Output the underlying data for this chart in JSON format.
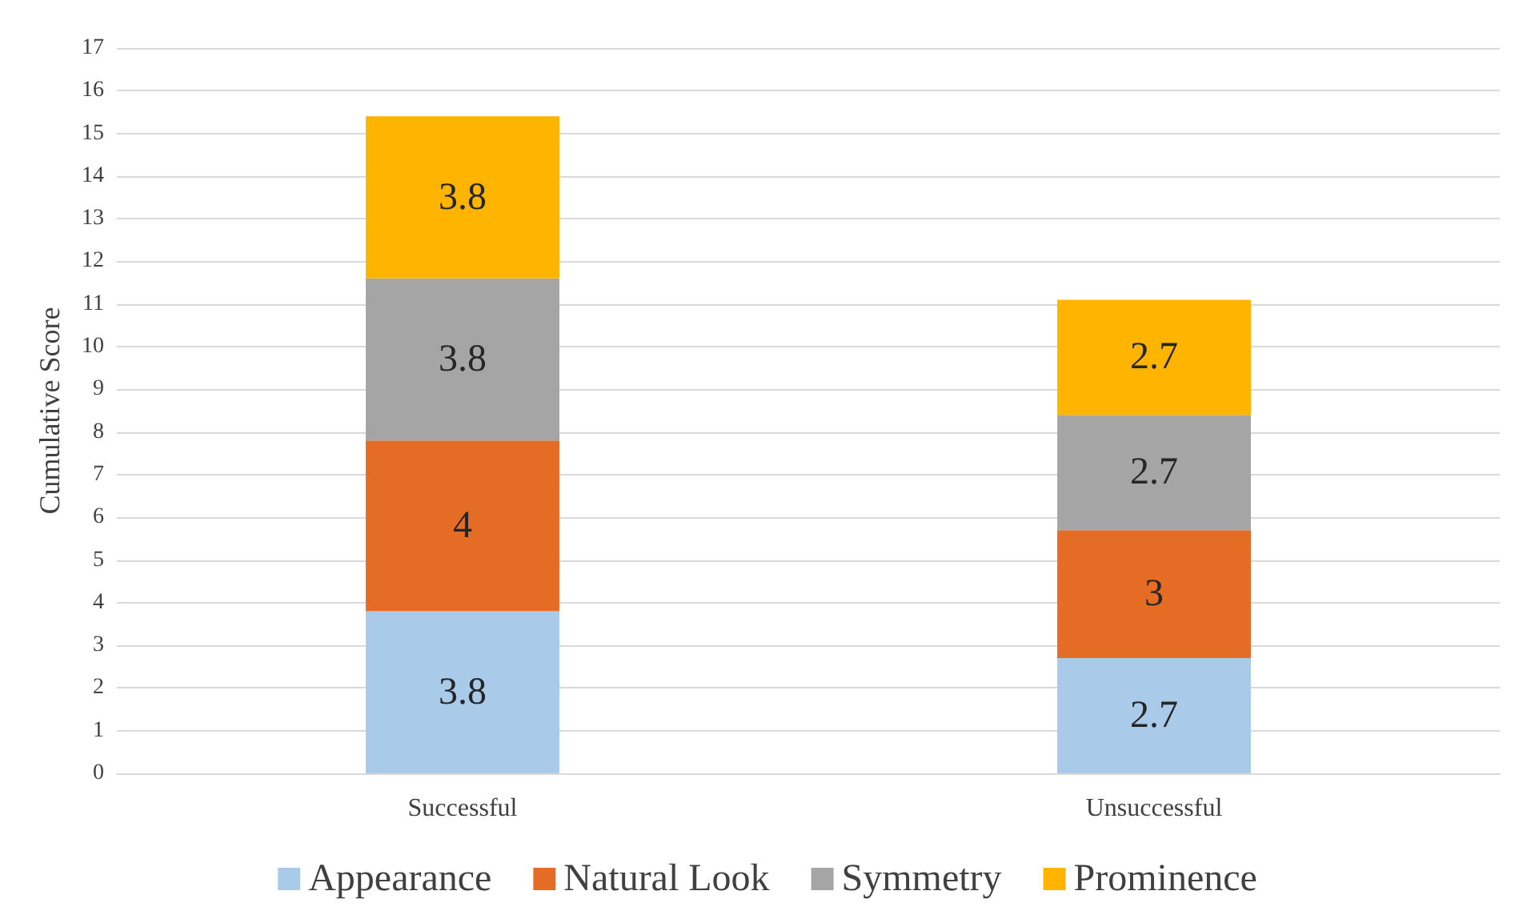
{
  "chart_data": {
    "type": "bar",
    "stacked": true,
    "ylabel": "Cumulative Score",
    "categories": [
      "Successful",
      "Unsuccessful"
    ],
    "series": [
      {
        "name": "Appearance",
        "color": "#a9cbe9",
        "values": [
          3.8,
          2.7
        ]
      },
      {
        "name": "Natural Look",
        "color": "#e46c24",
        "values": [
          4,
          3
        ]
      },
      {
        "name": "Symmetry",
        "color": "#a5a5a5",
        "values": [
          3.8,
          2.7
        ]
      },
      {
        "name": "Prominence",
        "color": "#ffb400",
        "values": [
          3.8,
          2.7
        ]
      }
    ],
    "ylim": [
      0,
      17
    ],
    "yticks": [
      0,
      1,
      2,
      3,
      4,
      5,
      6,
      7,
      8,
      9,
      10,
      11,
      12,
      13,
      14,
      15,
      16,
      17
    ],
    "grid": "y",
    "legend": "bottom",
    "data_labels": true
  }
}
